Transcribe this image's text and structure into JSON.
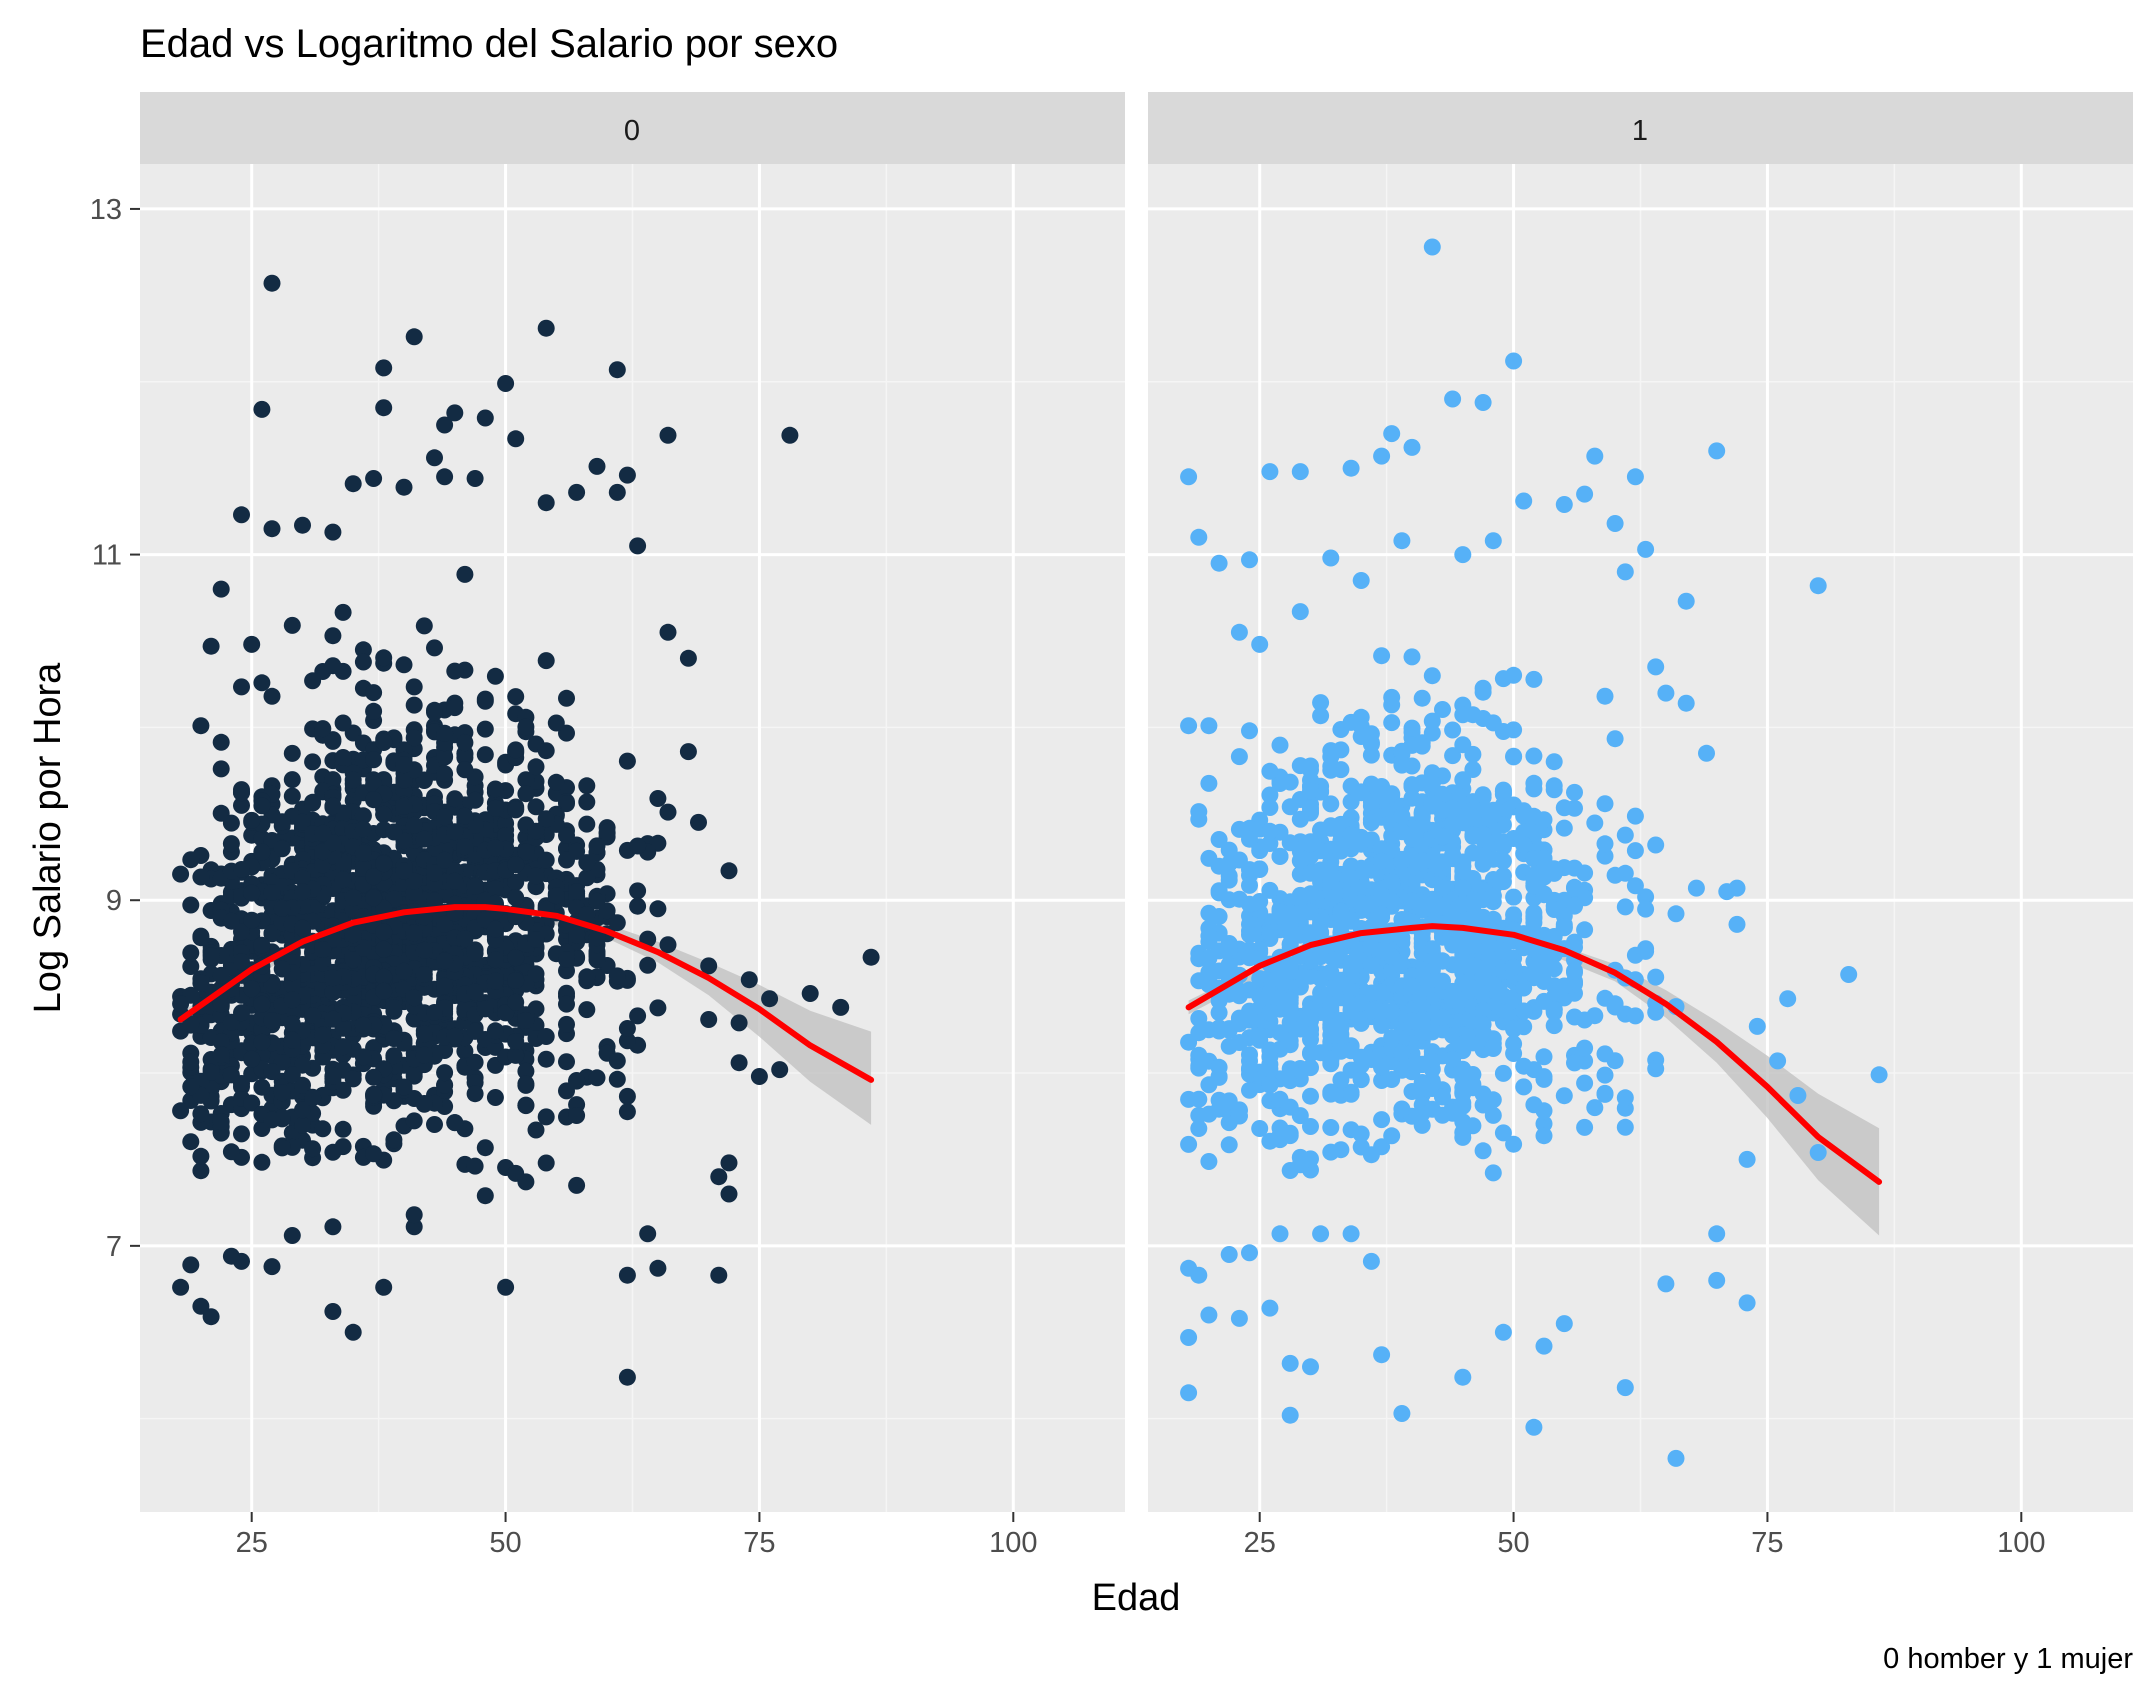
{
  "chart_data": {
    "type": "scatter",
    "title": "Edad vs Logaritmo del Salario por sexo",
    "xlabel": "Edad",
    "ylabel": "Log Salario por Hora",
    "caption": "0 homber y 1 mujer",
    "xlim": [
      14,
      111
    ],
    "ylim": [
      5.46,
      13.26
    ],
    "x_ticks": [
      25,
      50,
      75,
      100
    ],
    "x_tick_labels": [
      "25",
      "50",
      "75",
      "100"
    ],
    "y_ticks": [
      7,
      9,
      11,
      13
    ],
    "y_tick_labels": [
      "7",
      "9",
      "11",
      "13"
    ],
    "grid": true,
    "legend": "none",
    "fit_color": "#ff0000",
    "band_color": "#bfbfbf",
    "facets": [
      {
        "label": "0",
        "point_color": "#132b43",
        "fit": {
          "x": [
            18,
            25,
            30,
            35,
            40,
            45,
            48,
            50,
            55,
            60,
            65,
            70,
            75,
            80,
            86
          ],
          "y": [
            8.31,
            8.6,
            8.76,
            8.87,
            8.93,
            8.96,
            8.96,
            8.95,
            8.91,
            8.82,
            8.7,
            8.55,
            8.37,
            8.16,
            7.96
          ]
        },
        "band": {
          "x": [
            18,
            30,
            40,
            50,
            60,
            65,
            70,
            75,
            80,
            86
          ],
          "lower": [
            8.27,
            8.73,
            8.91,
            8.93,
            8.78,
            8.64,
            8.45,
            8.21,
            7.95,
            7.7
          ],
          "upper": [
            8.35,
            8.79,
            8.95,
            8.97,
            8.86,
            8.76,
            8.64,
            8.51,
            8.36,
            8.24
          ]
        },
        "outliers": [
          [
            27,
            12.57
          ],
          [
            54,
            12.31
          ],
          [
            41,
            12.26
          ],
          [
            38,
            12.08
          ],
          [
            61,
            12.07
          ],
          [
            50,
            11.99
          ],
          [
            26,
            11.84
          ],
          [
            45,
            11.82
          ],
          [
            48,
            11.79
          ],
          [
            44,
            11.75
          ],
          [
            38,
            11.85
          ],
          [
            66,
            11.69
          ],
          [
            78,
            11.69
          ],
          [
            51,
            11.67
          ],
          [
            43,
            11.56
          ],
          [
            59,
            11.51
          ],
          [
            62,
            11.46
          ],
          [
            37,
            11.44
          ],
          [
            24,
            11.23
          ],
          [
            27,
            11.15
          ],
          [
            86,
            8.67
          ],
          [
            80,
            8.46
          ],
          [
            83,
            8.38
          ],
          [
            76,
            8.43
          ],
          [
            77,
            8.02
          ],
          [
            75,
            7.98
          ],
          [
            73,
            8.06
          ],
          [
            72,
            7.48
          ],
          [
            71,
            7.4
          ],
          [
            72,
            7.3
          ],
          [
            71,
            6.83
          ],
          [
            65,
            6.87
          ],
          [
            64,
            7.07
          ],
          [
            62,
            6.83
          ],
          [
            62,
            6.24
          ],
          [
            50,
            6.76
          ],
          [
            38,
            6.76
          ],
          [
            35,
            6.5
          ],
          [
            33,
            6.62
          ],
          [
            21,
            6.59
          ],
          [
            20,
            6.65
          ],
          [
            18,
            6.76
          ],
          [
            19,
            6.89
          ],
          [
            24,
            6.91
          ],
          [
            23,
            6.94
          ],
          [
            27,
            6.88
          ],
          [
            29,
            7.06
          ],
          [
            33,
            7.11
          ],
          [
            41,
            7.11
          ],
          [
            41,
            7.18
          ],
          [
            48,
            7.29
          ],
          [
            52,
            7.37
          ],
          [
            57,
            7.35
          ],
          [
            20,
            10.01
          ],
          [
            21,
            10.47
          ],
          [
            22,
            10.8
          ],
          [
            25,
            10.48
          ],
          [
            29,
            10.59
          ],
          [
            30,
            11.17
          ],
          [
            33,
            11.13
          ],
          [
            35,
            11.41
          ],
          [
            40,
            11.39
          ],
          [
            44,
            11.45
          ],
          [
            47,
            11.44
          ],
          [
            54,
            11.3
          ],
          [
            57,
            11.36
          ],
          [
            61,
            11.36
          ],
          [
            63,
            11.05
          ],
          [
            66,
            10.55
          ],
          [
            68,
            10.4
          ],
          [
            68,
            9.86
          ],
          [
            69,
            9.45
          ],
          [
            70,
            8.62
          ],
          [
            72,
            9.17
          ],
          [
            74,
            8.54
          ],
          [
            70,
            8.31
          ],
          [
            73,
            8.29
          ]
        ],
        "cloud": {
          "n": 1850,
          "x_center": 38,
          "x_sd": 11.5,
          "x_range": [
            18,
            66
          ],
          "y_sd": 0.58,
          "y_range": [
            7.4,
            10.9
          ]
        }
      },
      {
        "label": "1",
        "point_color": "#56b1f7",
        "fit": {
          "x": [
            18,
            25,
            30,
            35,
            40,
            42,
            45,
            50,
            55,
            60,
            65,
            70,
            75,
            80,
            86
          ],
          "y": [
            8.38,
            8.62,
            8.74,
            8.81,
            8.84,
            8.85,
            8.84,
            8.8,
            8.71,
            8.58,
            8.4,
            8.18,
            7.92,
            7.63,
            7.37
          ]
        },
        "band": {
          "x": [
            18,
            30,
            40,
            50,
            60,
            65,
            70,
            75,
            80,
            86
          ],
          "lower": [
            8.34,
            8.71,
            8.82,
            8.77,
            8.53,
            8.32,
            8.06,
            7.74,
            7.38,
            7.06
          ],
          "upper": [
            8.42,
            8.77,
            8.86,
            8.83,
            8.63,
            8.48,
            8.3,
            8.1,
            7.88,
            7.68
          ]
        },
        "outliers": [
          [
            42,
            12.78
          ],
          [
            50,
            12.12
          ],
          [
            44,
            11.9
          ],
          [
            47,
            11.88
          ],
          [
            37,
            11.57
          ],
          [
            40,
            11.62
          ],
          [
            38,
            11.7
          ],
          [
            34,
            11.5
          ],
          [
            29,
            11.48
          ],
          [
            26,
            11.48
          ],
          [
            18,
            11.45
          ],
          [
            70,
            11.6
          ],
          [
            58,
            11.57
          ],
          [
            62,
            11.45
          ],
          [
            19,
            11.1
          ],
          [
            21,
            10.95
          ],
          [
            24,
            10.97
          ],
          [
            63,
            11.03
          ],
          [
            67,
            10.73
          ],
          [
            80,
            10.82
          ],
          [
            86,
            7.99
          ],
          [
            83,
            8.57
          ],
          [
            77,
            8.43
          ],
          [
            73,
            7.5
          ],
          [
            72,
            8.86
          ],
          [
            72,
            9.07
          ],
          [
            68,
            9.07
          ],
          [
            70,
            7.07
          ],
          [
            70,
            6.8
          ],
          [
            73,
            6.67
          ],
          [
            66,
            5.77
          ],
          [
            65,
            6.78
          ],
          [
            61,
            6.18
          ],
          [
            55,
            6.55
          ],
          [
            52,
            5.95
          ],
          [
            53,
            6.42
          ],
          [
            49,
            6.5
          ],
          [
            45,
            6.24
          ],
          [
            39,
            6.03
          ],
          [
            37,
            6.37
          ],
          [
            28,
            6.02
          ],
          [
            30,
            6.3
          ],
          [
            28,
            6.32
          ],
          [
            26,
            6.64
          ],
          [
            23,
            6.58
          ],
          [
            20,
            6.6
          ],
          [
            18,
            6.47
          ],
          [
            18,
            6.15
          ],
          [
            18,
            6.87
          ],
          [
            19,
            6.83
          ],
          [
            22,
            6.95
          ],
          [
            24,
            6.96
          ],
          [
            27,
            7.07
          ],
          [
            31,
            7.07
          ],
          [
            34,
            7.07
          ],
          [
            36,
            6.91
          ],
          [
            18,
            10.01
          ],
          [
            20,
            10.01
          ],
          [
            23,
            10.55
          ],
          [
            25,
            10.48
          ],
          [
            29,
            10.67
          ],
          [
            32,
            10.98
          ],
          [
            35,
            10.85
          ],
          [
            39,
            11.08
          ],
          [
            45,
            11.0
          ],
          [
            48,
            11.08
          ],
          [
            51,
            11.31
          ],
          [
            55,
            11.29
          ],
          [
            57,
            11.35
          ],
          [
            60,
            11.18
          ],
          [
            61,
            10.9
          ],
          [
            64,
            10.35
          ],
          [
            67,
            10.14
          ],
          [
            69,
            9.85
          ],
          [
            71,
            9.05
          ],
          [
            74,
            8.27
          ],
          [
            76,
            8.07
          ],
          [
            78,
            7.87
          ],
          [
            80,
            7.54
          ]
        ],
        "cloud": {
          "n": 1450,
          "x_center": 38,
          "x_sd": 11,
          "x_range": [
            18,
            66
          ],
          "y_sd": 0.57,
          "y_range": [
            7.4,
            10.7
          ]
        }
      }
    ]
  }
}
